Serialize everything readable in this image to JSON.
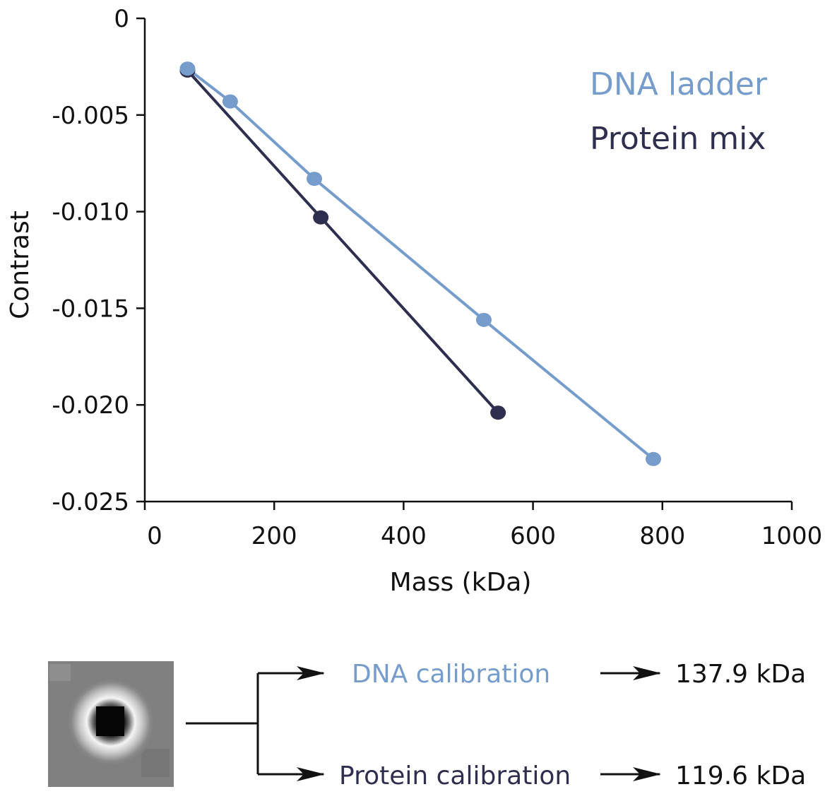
{
  "colors": {
    "dna": "#759ccb",
    "protein": "#2e2f4e",
    "axis": "#111111"
  },
  "chart_data": {
    "type": "line",
    "xlabel": "Mass (kDa)",
    "ylabel": "Contrast",
    "xlim": [
      0,
      1000
    ],
    "ylim": [
      -0.025,
      0
    ],
    "xticks": [
      0,
      200,
      400,
      600,
      800,
      1000
    ],
    "xtick_labels": [
      "0",
      "200",
      "400",
      "600",
      "800",
      "1000"
    ],
    "yticks": [
      0,
      -0.005,
      -0.01,
      -0.015,
      -0.02,
      -0.025
    ],
    "ytick_labels": [
      "0",
      "-0.005",
      "-0.010",
      "-0.015",
      "-0.020",
      "-0.025"
    ],
    "grid": false,
    "legend_position": "top-right",
    "series": [
      {
        "name": "DNA ladder",
        "color": "#759ccb",
        "x": [
          66,
          132,
          262,
          524,
          786
        ],
        "y": [
          -0.0026,
          -0.0043,
          -0.0083,
          -0.0156,
          -0.0228
        ]
      },
      {
        "name": "Protein mix",
        "color": "#2e2f4e",
        "x": [
          66,
          272,
          546
        ],
        "y": [
          -0.0027,
          -0.0103,
          -0.0204
        ]
      }
    ]
  },
  "flow": {
    "dna_label": "DNA calibration",
    "dna_result": "137.9 kDa",
    "protein_label": "Protein calibration",
    "protein_result": "119.6 kDa"
  }
}
